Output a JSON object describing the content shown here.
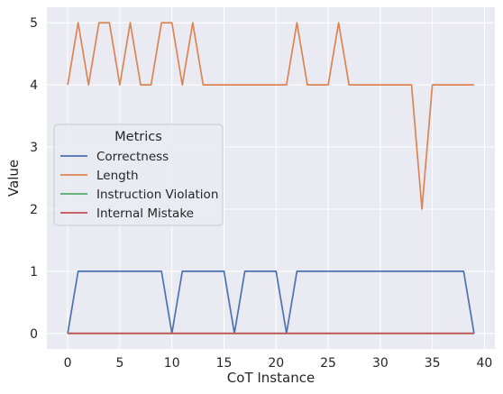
{
  "chart_data": {
    "type": "line",
    "title": "",
    "xlabel": "CoT Instance",
    "ylabel": "Value",
    "xlim": [
      -2,
      41
    ],
    "ylim": [
      -0.25,
      5.25
    ],
    "x_ticks": [
      0,
      5,
      10,
      15,
      20,
      25,
      30,
      35,
      40
    ],
    "y_ticks": [
      0,
      1,
      2,
      3,
      4,
      5
    ],
    "grid": true,
    "background": "#eaeaf2",
    "legend": {
      "title": "Metrics",
      "placement": "center-left"
    },
    "x": [
      0,
      1,
      2,
      3,
      4,
      5,
      6,
      7,
      8,
      9,
      10,
      11,
      12,
      13,
      14,
      15,
      16,
      17,
      18,
      19,
      20,
      21,
      22,
      23,
      24,
      25,
      26,
      27,
      28,
      29,
      30,
      31,
      32,
      33,
      34,
      35,
      36,
      37,
      38,
      39
    ],
    "series": [
      {
        "name": "Correctness",
        "color": "#4c72b0",
        "values": [
          0,
          1,
          1,
          1,
          1,
          1,
          1,
          1,
          1,
          1,
          0,
          1,
          1,
          1,
          1,
          1,
          0,
          1,
          1,
          1,
          1,
          0,
          1,
          1,
          1,
          1,
          1,
          1,
          1,
          1,
          1,
          1,
          1,
          1,
          1,
          1,
          1,
          1,
          1,
          0
        ]
      },
      {
        "name": "Length",
        "color": "#dd8452",
        "values": [
          4,
          5,
          4,
          5,
          5,
          4,
          5,
          4,
          4,
          5,
          5,
          4,
          5,
          4,
          4,
          4,
          4,
          4,
          4,
          4,
          4,
          4,
          5,
          4,
          4,
          4,
          5,
          4,
          4,
          4,
          4,
          4,
          4,
          4,
          2,
          4,
          4,
          4,
          4,
          4
        ]
      },
      {
        "name": "Instruction Violation",
        "color": "#55a868",
        "values": [
          0,
          0,
          0,
          0,
          0,
          0,
          0,
          0,
          0,
          0,
          0,
          0,
          0,
          0,
          0,
          0,
          0,
          0,
          0,
          0,
          0,
          0,
          0,
          0,
          0,
          0,
          0,
          0,
          0,
          0,
          0,
          0,
          0,
          0,
          0,
          0,
          0,
          0,
          0,
          0
        ]
      },
      {
        "name": "Internal Mistake",
        "color": "#c44e52",
        "values": [
          0,
          0,
          0,
          0,
          0,
          0,
          0,
          0,
          0,
          0,
          0,
          0,
          0,
          0,
          0,
          0,
          0,
          0,
          0,
          0,
          0,
          0,
          0,
          0,
          0,
          0,
          0,
          0,
          0,
          0,
          0,
          0,
          0,
          0,
          0,
          0,
          0,
          0,
          0,
          0
        ]
      }
    ]
  }
}
